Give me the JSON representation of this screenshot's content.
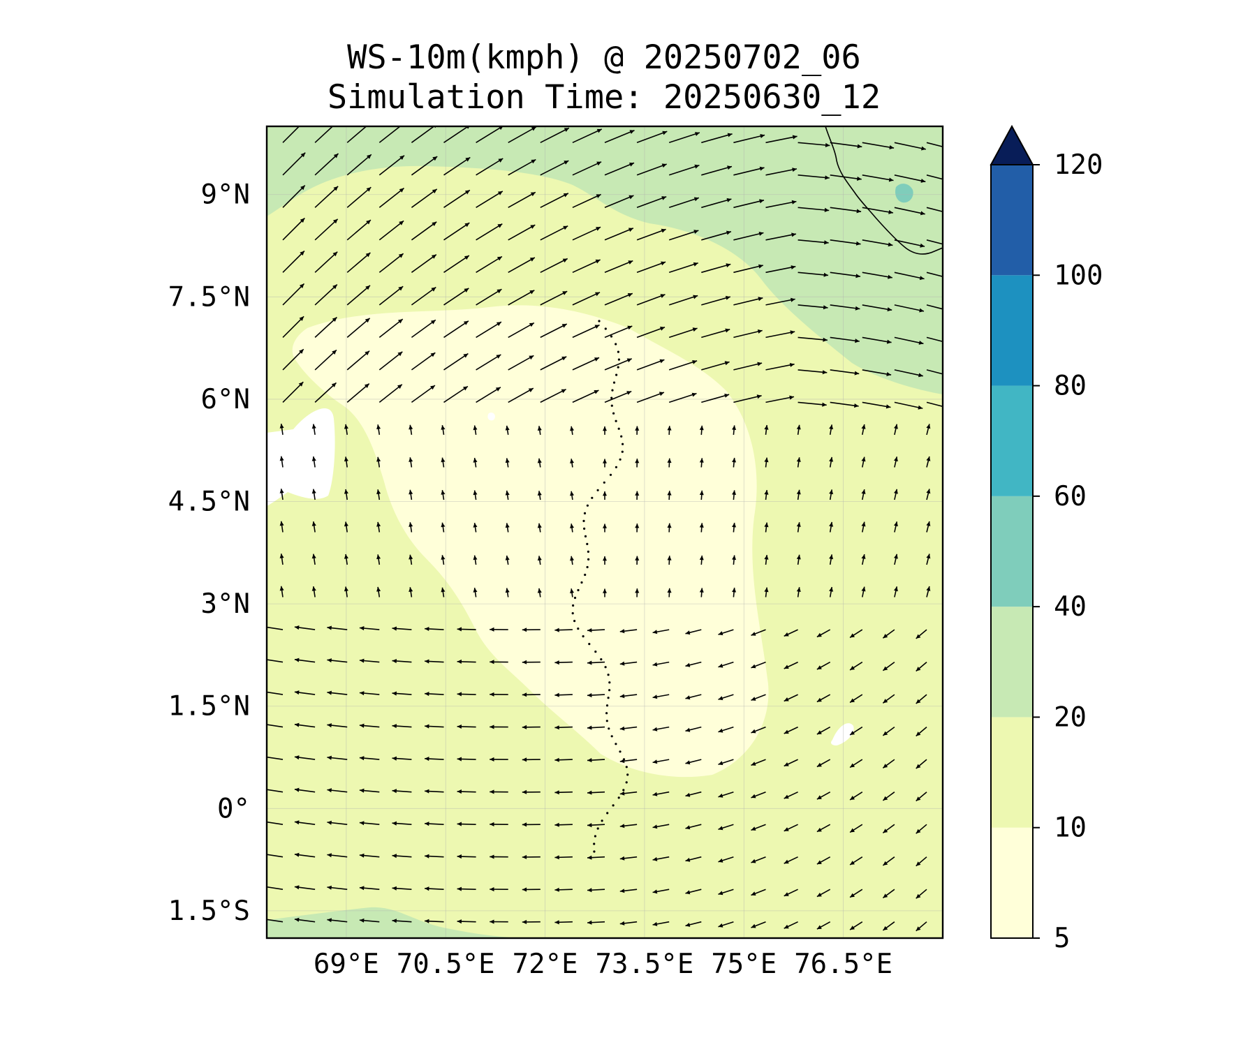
{
  "title": {
    "line1": "WS-10m(kmph) @ 20250702_06",
    "line2": "Simulation Time: 20250630_12"
  },
  "map": {
    "lon_range": [
      67.8,
      78.0
    ],
    "lat_range": [
      -1.9,
      10.0
    ],
    "x_ticks": [
      {
        "value": 69.0,
        "label": "69°E"
      },
      {
        "value": 70.5,
        "label": "70.5°E"
      },
      {
        "value": 72.0,
        "label": "72°E"
      },
      {
        "value": 73.5,
        "label": "73.5°E"
      },
      {
        "value": 75.0,
        "label": "75°E"
      },
      {
        "value": 76.5,
        "label": "76.5°E"
      }
    ],
    "y_ticks": [
      {
        "value": 9.0,
        "label": "9°N"
      },
      {
        "value": 7.5,
        "label": "7.5°N"
      },
      {
        "value": 6.0,
        "label": "6°N"
      },
      {
        "value": 4.5,
        "label": "4.5°N"
      },
      {
        "value": 3.0,
        "label": "3°N"
      },
      {
        "value": 1.5,
        "label": "1.5°N"
      },
      {
        "value": 0.0,
        "label": "0°"
      },
      {
        "value": -1.5,
        "label": "1.5°S"
      }
    ],
    "gridlines": true,
    "background_color": "#edf8b1"
  },
  "colorbar": {
    "levels": [
      5,
      10,
      20,
      40,
      60,
      80,
      100,
      120
    ],
    "tick_labels": [
      "5",
      "10",
      "20",
      "40",
      "60",
      "80",
      "100",
      "120"
    ],
    "colors": [
      "#ffffd9",
      "#edf8b1",
      "#c7e9b4",
      "#7fcdbb",
      "#41b6c4",
      "#1d91c0",
      "#225ea8",
      "#253494"
    ],
    "extend_color": "#081d58",
    "extend": "max"
  }
}
